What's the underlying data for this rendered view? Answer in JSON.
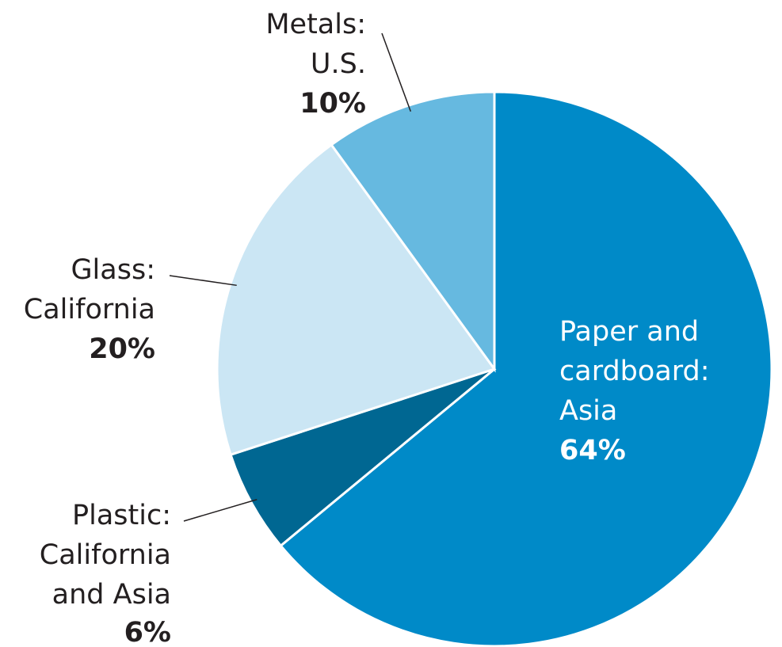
{
  "chart_data": {
    "type": "pie",
    "slices": [
      {
        "label_lines": [
          "Paper and",
          "cardboard:",
          "Asia"
        ],
        "value": 64,
        "value_label": "64%",
        "color": "#008ac8"
      },
      {
        "label_lines": [
          "Plastic:",
          "California",
          "and Asia"
        ],
        "value": 6,
        "value_label": "6%",
        "color": "#006792"
      },
      {
        "label_lines": [
          "Glass:",
          "California"
        ],
        "value": 20,
        "value_label": "20%",
        "color": "#cbe6f4"
      },
      {
        "label_lines": [
          "Metals:",
          "U.S."
        ],
        "value": 10,
        "value_label": "10%",
        "color": "#66b9e0"
      }
    ],
    "start_angle_deg": 0,
    "direction": "clockwise"
  }
}
